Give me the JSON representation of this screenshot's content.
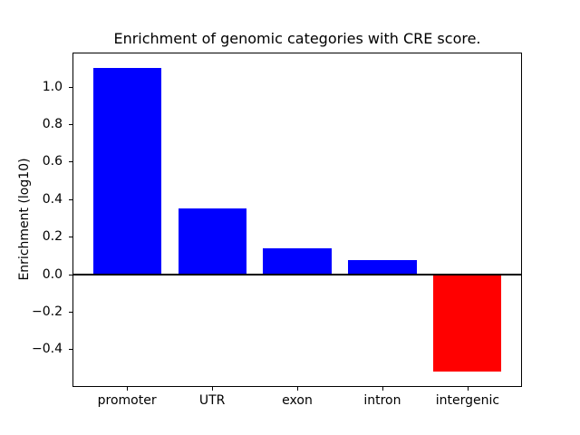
{
  "figure": {
    "background": "#ffffff"
  },
  "chart_data": {
    "type": "bar",
    "title": "Enrichment of genomic categories with CRE score.",
    "xlabel": "",
    "ylabel": "Enrichment (log10)",
    "categories": [
      "promoter",
      "UTR",
      "exon",
      "intron",
      "intergenic"
    ],
    "values": [
      1.1,
      0.35,
      0.14,
      0.075,
      -0.52
    ],
    "bar_colors": [
      "#0000ff",
      "#0000ff",
      "#0000ff",
      "#0000ff",
      "#ff0000"
    ],
    "positive_color": "#0000ff",
    "negative_color": "#ff0000",
    "bar_width": 0.8,
    "xlim": [
      -0.64,
      4.64
    ],
    "ylim": [
      -0.601,
      1.181
    ],
    "yticks": [
      1.0,
      0.8,
      0.6,
      0.4,
      0.2,
      0.0,
      -0.2,
      -0.4
    ],
    "ytick_labels": [
      "1.0",
      "0.8",
      "0.6",
      "0.4",
      "0.2",
      "0.0",
      "−0.2",
      "−0.4"
    ],
    "zero_line_value": 0.0,
    "grid": false,
    "legend": null,
    "frame_color": "#000000"
  }
}
